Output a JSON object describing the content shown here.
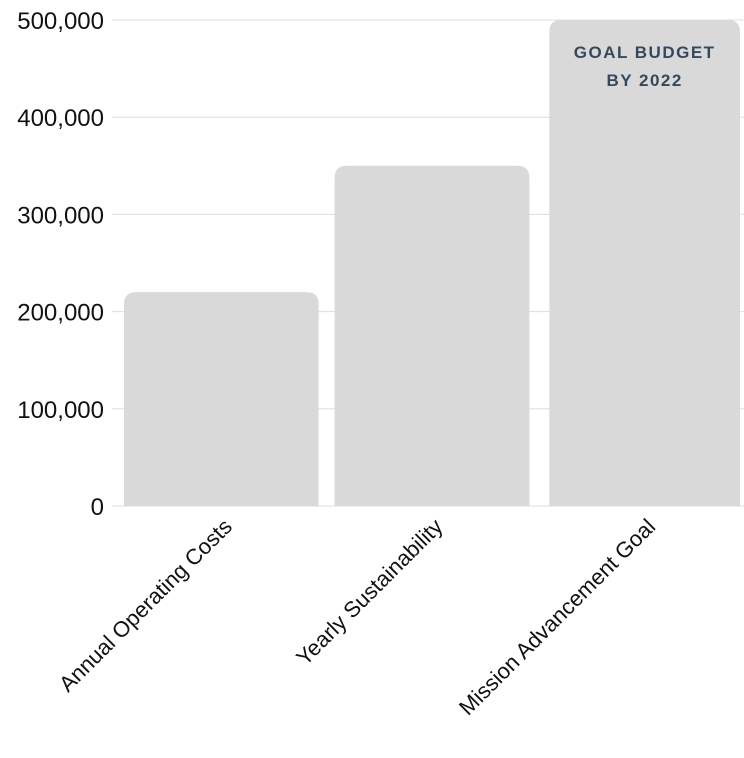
{
  "chart_data": {
    "type": "bar",
    "categories": [
      "Annual Operating Costs",
      "Yearly Sustainability",
      "Mission Advancement Goal"
    ],
    "values": [
      220000,
      350000,
      500000
    ],
    "ylim": [
      0,
      500000
    ],
    "yticks": [
      "0",
      "100,000",
      "200,000",
      "300,000",
      "400,000",
      "500,000"
    ],
    "ytick_values": [
      0,
      100000,
      200000,
      300000,
      400000,
      500000
    ],
    "grid": true,
    "bar_color": "#d9d9d9",
    "grid_color": "#dddddd",
    "annotation": {
      "category": "Mission Advancement Goal",
      "lines": [
        "GOAL BUDGET",
        "BY 2022"
      ],
      "color": "#35495e"
    }
  }
}
